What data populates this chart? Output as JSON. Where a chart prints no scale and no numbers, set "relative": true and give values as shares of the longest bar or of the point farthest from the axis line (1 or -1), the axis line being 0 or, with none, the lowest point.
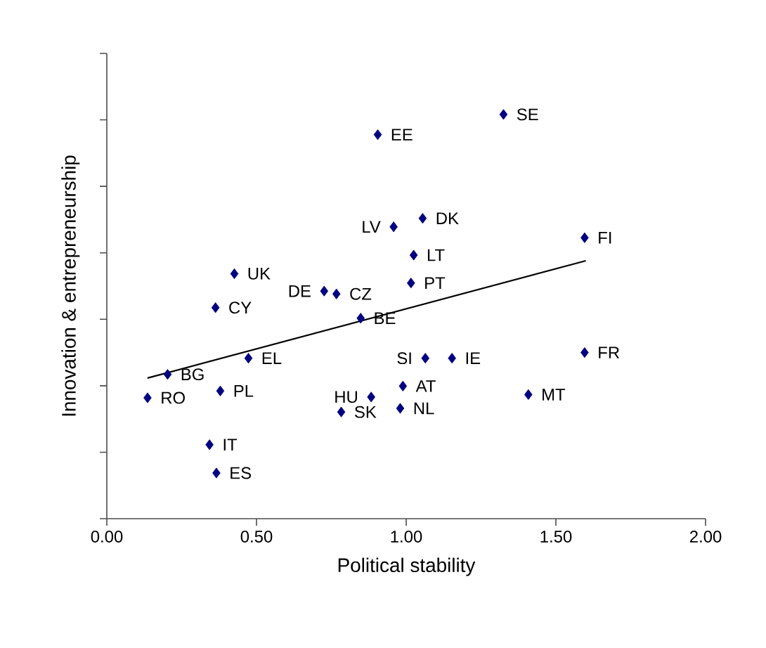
{
  "chart_data": {
    "type": "scatter",
    "xlabel": "Political stability",
    "ylabel": "Innovation & entrepreneurship",
    "relative": true,
    "grid": false,
    "xlim": [
      0,
      2
    ],
    "xticks": [
      {
        "value": 0,
        "label": "0.00"
      },
      {
        "value": 0.5,
        "label": "0.50"
      },
      {
        "value": 1,
        "label": "1.00"
      },
      {
        "value": 1.5,
        "label": "1.50"
      },
      {
        "value": 2,
        "label": "2.00"
      }
    ],
    "series": [
      {
        "color": "#000080",
        "marker": "diamond",
        "x": [
          0.136,
          0.203,
          0.379,
          0.473,
          0.343,
          0.366,
          0.363,
          0.426,
          0.726,
          0.767,
          0.848,
          0.783,
          0.905,
          0.883,
          0.989,
          0.98,
          0.958,
          1.055,
          1.025,
          1.016,
          1.064,
          1.153,
          1.408,
          1.596,
          1.596,
          1.325
        ],
        "values": [
          0.299,
          0.357,
          0.316,
          0.397,
          0.183,
          0.113,
          0.522,
          0.606,
          0.563,
          0.556,
          0.496,
          0.264,
          0.95,
          0.301,
          0.328,
          0.273,
          0.722,
          0.743,
          0.652,
          0.583,
          0.397,
          0.397,
          0.307,
          0.411,
          0.695,
          1.0
        ]
      },
      {
        "type": "line",
        "color": "#000000",
        "marker": "none",
        "x": [
          0.136,
          1.6
        ],
        "values": [
          0.348,
          0.638
        ]
      }
    ],
    "annotations": [
      {
        "text": "RO",
        "x": 0.136,
        "y": 0.299
      },
      {
        "text": "BG",
        "x": 0.203,
        "y": 0.357
      },
      {
        "text": "PL",
        "x": 0.379,
        "y": 0.316
      },
      {
        "text": "EL",
        "x": 0.473,
        "y": 0.397
      },
      {
        "text": "IT",
        "x": 0.343,
        "y": 0.183
      },
      {
        "text": "ES",
        "x": 0.366,
        "y": 0.113
      },
      {
        "text": "CY",
        "x": 0.363,
        "y": 0.522
      },
      {
        "text": "UK",
        "x": 0.426,
        "y": 0.606
      },
      {
        "text": "DE",
        "x": 0.726,
        "y": 0.563
      },
      {
        "text": "CZ",
        "x": 0.767,
        "y": 0.556
      },
      {
        "text": "BE",
        "x": 0.848,
        "y": 0.496
      },
      {
        "text": "SK",
        "x": 0.783,
        "y": 0.264
      },
      {
        "text": "EE",
        "x": 0.905,
        "y": 0.95
      },
      {
        "text": "HU",
        "x": 0.883,
        "y": 0.301
      },
      {
        "text": "AT",
        "x": 0.989,
        "y": 0.328
      },
      {
        "text": "NL",
        "x": 0.98,
        "y": 0.273
      },
      {
        "text": "LV",
        "x": 0.958,
        "y": 0.722
      },
      {
        "text": "DK",
        "x": 1.055,
        "y": 0.743
      },
      {
        "text": "LT",
        "x": 1.025,
        "y": 0.652
      },
      {
        "text": "PT",
        "x": 1.016,
        "y": 0.583
      },
      {
        "text": "SI",
        "x": 1.064,
        "y": 0.397
      },
      {
        "text": "IE",
        "x": 1.153,
        "y": 0.397
      },
      {
        "text": "MT",
        "x": 1.408,
        "y": 0.307
      },
      {
        "text": "FR",
        "x": 1.596,
        "y": 0.411
      },
      {
        "text": "FI",
        "x": 1.596,
        "y": 0.695
      },
      {
        "text": "SE",
        "x": 1.325,
        "y": 1.0
      }
    ]
  }
}
